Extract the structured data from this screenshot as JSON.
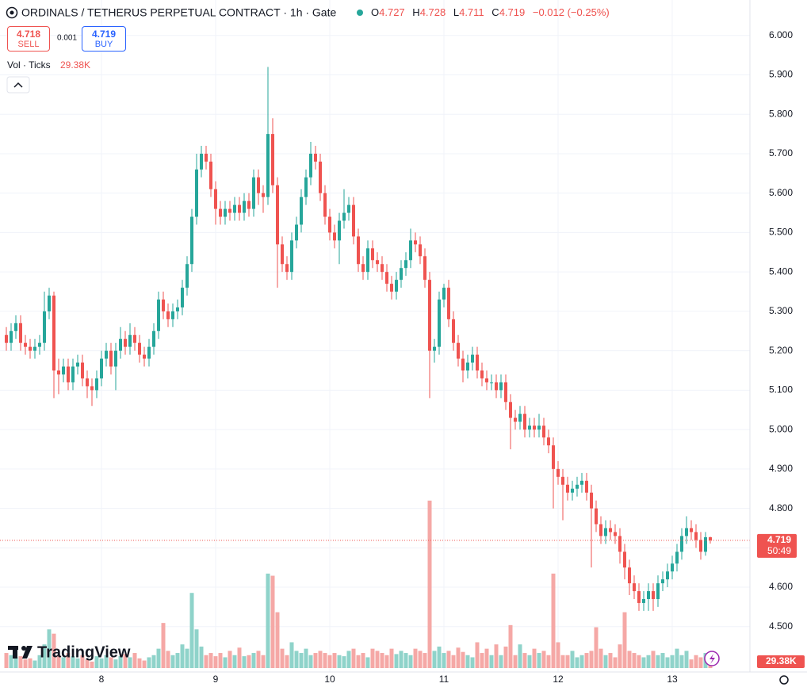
{
  "header": {
    "symbol": "ORDINALS / TETHERUS PERPETUAL CONTRACT · 1h · Gate",
    "o_label": "O",
    "h_label": "H",
    "l_label": "L",
    "c_label": "C",
    "change": "−0.012 (−0.25%)",
    "sell_price": "4.718",
    "sell_label": "SELL",
    "spread": "0.001",
    "buy_price": "4.719",
    "buy_label": "BUY",
    "volume_legend": "Vol · Ticks",
    "countdown": "50:49",
    "logo": "TradingView"
  },
  "chart_data": {
    "type": "candlestick",
    "up_color": "#26a69a",
    "down_color": "#ef5350",
    "up_volume_color": "#8fd3ca",
    "down_volume_color": "#f5a8a6",
    "grid": true,
    "ylim": [
      4.391,
      6.09
    ],
    "yticks": [
      {
        "value": 4.5,
        "label": "4.500"
      },
      {
        "value": 4.6,
        "label": "4.600"
      },
      {
        "value": 4.7,
        "label": "4.700"
      },
      {
        "value": 4.8,
        "label": "4.800"
      },
      {
        "value": 4.9,
        "label": "4.900"
      },
      {
        "value": 5.0,
        "label": "5.000"
      },
      {
        "value": 5.1,
        "label": "5.100"
      },
      {
        "value": 5.2,
        "label": "5.200"
      },
      {
        "value": 5.3,
        "label": "5.300"
      },
      {
        "value": 5.4,
        "label": "5.400"
      },
      {
        "value": 5.5,
        "label": "5.500"
      },
      {
        "value": 5.6,
        "label": "5.600"
      },
      {
        "value": 5.7,
        "label": "5.700"
      },
      {
        "value": 5.8,
        "label": "5.800"
      },
      {
        "value": 5.9,
        "label": "5.900"
      },
      {
        "value": 6.0,
        "label": "6.000"
      }
    ],
    "volume_ylim": [
      0,
      960
    ],
    "volume_label": "29.38K",
    "categories": [
      null,
      null,
      null,
      null,
      null,
      null,
      null,
      null,
      null,
      null,
      null,
      null,
      null,
      null,
      null,
      null,
      null,
      null,
      null,
      null,
      "8",
      null,
      null,
      null,
      null,
      null,
      null,
      null,
      null,
      null,
      null,
      null,
      null,
      null,
      null,
      null,
      null,
      null,
      null,
      null,
      null,
      null,
      null,
      null,
      "9",
      null,
      null,
      null,
      null,
      null,
      null,
      null,
      null,
      null,
      null,
      null,
      null,
      null,
      null,
      null,
      null,
      null,
      null,
      null,
      null,
      null,
      null,
      null,
      "10",
      null,
      null,
      null,
      null,
      null,
      null,
      null,
      null,
      null,
      null,
      null,
      null,
      null,
      null,
      null,
      null,
      null,
      null,
      null,
      null,
      null,
      null,
      null,
      "11",
      null,
      null,
      null,
      null,
      null,
      null,
      null,
      null,
      null,
      null,
      null,
      null,
      null,
      null,
      null,
      null,
      null,
      null,
      null,
      null,
      null,
      null,
      null,
      "12",
      null,
      null,
      null,
      null,
      null,
      null,
      null,
      null,
      null,
      null,
      null,
      null,
      null,
      null,
      null,
      null,
      null,
      null,
      null,
      null,
      null,
      null,
      null,
      "13",
      null,
      null,
      null,
      null,
      null,
      null,
      null,
      null
    ],
    "open": [
      5.24,
      5.22,
      5.25,
      5.27,
      5.22,
      5.21,
      5.2,
      5.21,
      5.22,
      5.3,
      5.34,
      5.15,
      5.14,
      5.16,
      5.12,
      5.16,
      5.17,
      5.13,
      5.11,
      5.1,
      5.13,
      5.18,
      5.2,
      5.16,
      5.2,
      5.23,
      5.21,
      5.24,
      5.22,
      5.19,
      5.18,
      5.21,
      5.25,
      5.33,
      5.3,
      5.28,
      5.3,
      5.31,
      5.36,
      5.42,
      5.54,
      5.66,
      5.7,
      5.68,
      5.61,
      5.56,
      5.54,
      5.56,
      5.55,
      5.57,
      5.55,
      5.58,
      5.56,
      5.64,
      5.6,
      5.59,
      5.75,
      5.62,
      5.47,
      5.42,
      5.4,
      5.48,
      5.52,
      5.59,
      5.64,
      5.7,
      5.68,
      5.6,
      5.54,
      5.5,
      5.48,
      5.53,
      5.55,
      5.57,
      5.49,
      5.42,
      5.4,
      5.46,
      5.43,
      5.42,
      5.4,
      5.37,
      5.35,
      5.38,
      5.41,
      5.43,
      5.48,
      5.47,
      5.44,
      5.38,
      5.2,
      5.21,
      5.33,
      5.36,
      5.28,
      5.22,
      5.18,
      5.15,
      5.17,
      5.19,
      5.15,
      5.13,
      5.12,
      5.12,
      5.1,
      5.12,
      5.07,
      5.03,
      5.02,
      5.04,
      5.0,
      5.01,
      5.0,
      5.01,
      4.98,
      4.96,
      4.9,
      4.88,
      4.86,
      4.84,
      4.85,
      4.86,
      4.87,
      4.84,
      4.8,
      4.76,
      4.73,
      4.75,
      4.74,
      4.73,
      4.69,
      4.65,
      4.61,
      4.59,
      4.56,
      4.57,
      4.59,
      4.57,
      4.61,
      4.62,
      4.64,
      4.66,
      4.69,
      4.73,
      4.75,
      4.74,
      4.72,
      4.69,
      4.727
    ],
    "high": [
      5.26,
      5.27,
      5.29,
      5.29,
      5.24,
      5.23,
      5.23,
      5.24,
      5.35,
      5.36,
      5.35,
      5.18,
      5.18,
      5.18,
      5.18,
      5.19,
      5.19,
      5.15,
      5.13,
      5.15,
      5.2,
      5.22,
      5.22,
      5.22,
      5.26,
      5.25,
      5.27,
      5.26,
      5.24,
      5.21,
      5.23,
      5.27,
      5.35,
      5.35,
      5.32,
      5.32,
      5.33,
      5.38,
      5.44,
      5.56,
      5.7,
      5.72,
      5.72,
      5.7,
      5.63,
      5.58,
      5.58,
      5.58,
      5.59,
      5.59,
      5.6,
      5.6,
      5.66,
      5.66,
      5.62,
      5.92,
      5.79,
      5.64,
      5.49,
      5.44,
      5.5,
      5.54,
      5.61,
      5.66,
      5.73,
      5.72,
      5.7,
      5.62,
      5.56,
      5.52,
      5.55,
      5.61,
      5.59,
      5.59,
      5.51,
      5.44,
      5.48,
      5.48,
      5.45,
      5.44,
      5.42,
      5.39,
      5.4,
      5.43,
      5.45,
      5.51,
      5.5,
      5.49,
      5.46,
      5.4,
      5.23,
      5.35,
      5.37,
      5.38,
      5.3,
      5.24,
      5.2,
      5.19,
      5.21,
      5.21,
      5.17,
      5.15,
      5.14,
      5.14,
      5.14,
      5.14,
      5.09,
      5.05,
      5.06,
      5.06,
      5.03,
      5.03,
      5.04,
      5.03,
      5.0,
      4.98,
      4.92,
      4.9,
      4.88,
      4.87,
      4.88,
      4.89,
      4.89,
      4.86,
      4.82,
      4.78,
      4.77,
      4.77,
      4.76,
      4.75,
      4.71,
      4.67,
      4.63,
      4.61,
      4.59,
      4.61,
      4.61,
      4.63,
      4.64,
      4.66,
      4.68,
      4.71,
      4.75,
      4.78,
      4.77,
      4.76,
      4.74,
      4.74,
      4.728
    ],
    "low": [
      5.2,
      5.2,
      5.23,
      5.2,
      5.19,
      5.18,
      5.18,
      5.19,
      5.2,
      5.28,
      5.08,
      5.09,
      5.12,
      5.1,
      5.1,
      5.14,
      5.11,
      5.08,
      5.06,
      5.08,
      5.11,
      5.16,
      5.14,
      5.1,
      5.18,
      5.19,
      5.19,
      5.2,
      5.17,
      5.16,
      5.16,
      5.19,
      5.23,
      5.28,
      5.26,
      5.26,
      5.28,
      5.29,
      5.34,
      5.4,
      5.52,
      5.64,
      5.66,
      5.59,
      5.52,
      5.52,
      5.52,
      5.53,
      5.53,
      5.53,
      5.53,
      5.54,
      5.54,
      5.57,
      5.55,
      5.57,
      5.6,
      5.36,
      5.4,
      5.38,
      5.38,
      5.46,
      5.5,
      5.57,
      5.62,
      5.66,
      5.58,
      5.52,
      5.48,
      5.46,
      5.42,
      5.51,
      5.53,
      5.47,
      5.4,
      5.38,
      5.38,
      5.41,
      5.4,
      5.38,
      5.35,
      5.33,
      5.33,
      5.36,
      5.39,
      5.41,
      5.45,
      5.42,
      5.36,
      5.08,
      5.17,
      5.19,
      5.31,
      5.26,
      5.2,
      5.16,
      5.12,
      5.13,
      5.15,
      5.13,
      5.11,
      5.1,
      5.1,
      5.08,
      5.08,
      5.05,
      4.95,
      5.0,
      5.0,
      4.98,
      4.98,
      4.98,
      4.98,
      4.96,
      4.94,
      4.8,
      4.86,
      4.77,
      4.82,
      4.82,
      4.83,
      4.84,
      4.82,
      4.65,
      4.74,
      4.71,
      4.71,
      4.72,
      4.71,
      4.66,
      4.62,
      4.58,
      4.57,
      4.54,
      4.54,
      4.54,
      4.54,
      4.55,
      4.59,
      4.6,
      4.62,
      4.64,
      4.67,
      4.71,
      4.72,
      4.7,
      4.67,
      4.68,
      4.711
    ],
    "close": [
      5.22,
      5.25,
      5.27,
      5.22,
      5.21,
      5.2,
      5.21,
      5.22,
      5.3,
      5.34,
      5.15,
      5.14,
      5.16,
      5.12,
      5.16,
      5.17,
      5.13,
      5.11,
      5.1,
      5.13,
      5.18,
      5.2,
      5.16,
      5.2,
      5.23,
      5.21,
      5.24,
      5.22,
      5.19,
      5.18,
      5.21,
      5.25,
      5.33,
      5.3,
      5.28,
      5.3,
      5.31,
      5.36,
      5.42,
      5.54,
      5.66,
      5.7,
      5.68,
      5.61,
      5.56,
      5.54,
      5.56,
      5.55,
      5.57,
      5.55,
      5.58,
      5.56,
      5.64,
      5.6,
      5.59,
      5.75,
      5.62,
      5.47,
      5.42,
      5.4,
      5.48,
      5.52,
      5.59,
      5.64,
      5.7,
      5.68,
      5.6,
      5.54,
      5.5,
      5.48,
      5.53,
      5.55,
      5.57,
      5.49,
      5.42,
      5.4,
      5.46,
      5.43,
      5.42,
      5.4,
      5.37,
      5.35,
      5.38,
      5.41,
      5.43,
      5.48,
      5.47,
      5.44,
      5.38,
      5.2,
      5.21,
      5.33,
      5.36,
      5.28,
      5.22,
      5.18,
      5.15,
      5.17,
      5.19,
      5.15,
      5.13,
      5.12,
      5.12,
      5.1,
      5.12,
      5.07,
      5.03,
      5.02,
      5.04,
      5.0,
      5.01,
      5.0,
      5.01,
      4.98,
      4.96,
      4.9,
      4.88,
      4.86,
      4.84,
      4.85,
      4.86,
      4.87,
      4.84,
      4.8,
      4.76,
      4.73,
      4.75,
      4.74,
      4.73,
      4.69,
      4.65,
      4.61,
      4.59,
      4.56,
      4.57,
      4.59,
      4.57,
      4.61,
      4.62,
      4.64,
      4.66,
      4.69,
      4.73,
      4.75,
      4.74,
      4.72,
      4.69,
      4.727,
      4.719
    ],
    "volume": [
      70,
      60,
      50,
      55,
      40,
      45,
      35,
      60,
      110,
      180,
      160,
      60,
      50,
      70,
      55,
      45,
      60,
      40,
      30,
      55,
      45,
      60,
      50,
      40,
      55,
      65,
      50,
      70,
      45,
      35,
      50,
      60,
      90,
      210,
      80,
      60,
      70,
      110,
      90,
      350,
      180,
      100,
      60,
      70,
      55,
      70,
      50,
      80,
      60,
      95,
      55,
      60,
      70,
      80,
      60,
      440,
      430,
      260,
      90,
      60,
      120,
      80,
      70,
      90,
      60,
      70,
      80,
      70,
      60,
      70,
      60,
      55,
      80,
      90,
      60,
      70,
      50,
      90,
      80,
      70,
      60,
      90,
      65,
      80,
      70,
      60,
      90,
      80,
      70,
      780,
      80,
      100,
      70,
      80,
      60,
      95,
      75,
      60,
      50,
      120,
      70,
      90,
      60,
      110,
      60,
      100,
      200,
      60,
      110,
      70,
      60,
      90,
      70,
      80,
      60,
      440,
      120,
      60,
      60,
      80,
      50,
      60,
      70,
      80,
      190,
      90,
      60,
      70,
      50,
      110,
      260,
      80,
      70,
      60,
      50,
      60,
      80,
      60,
      70,
      50,
      60,
      90,
      60,
      80,
      40,
      60,
      50,
      70,
      29.38
    ]
  }
}
